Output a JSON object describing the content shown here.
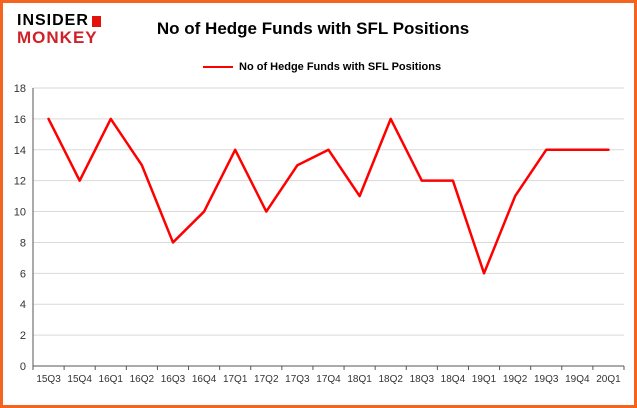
{
  "logo": {
    "line1": "INSIDER",
    "line2": "MONKEY"
  },
  "title": "No of Hedge Funds with SFL Positions",
  "legend": {
    "label": "No of Hedge Funds with SFL Positions"
  },
  "colors": {
    "border": "#f4641e",
    "line": "#fe0000",
    "grid": "#d9d9d9",
    "axis": "#555555",
    "tick_text": "#333333",
    "logo_red": "#cf2127"
  },
  "chart_data": {
    "type": "line",
    "title": "No of Hedge Funds with SFL Positions",
    "categories": [
      "15Q3",
      "15Q4",
      "16Q1",
      "16Q2",
      "16Q3",
      "16Q4",
      "17Q1",
      "17Q2",
      "17Q3",
      "17Q4",
      "18Q1",
      "18Q2",
      "18Q3",
      "18Q4",
      "19Q1",
      "19Q2",
      "19Q3",
      "19Q4",
      "20Q1"
    ],
    "values": [
      16,
      12,
      16,
      13,
      8,
      10,
      14,
      10,
      13,
      14,
      11,
      16,
      12,
      12,
      6,
      11,
      14,
      14,
      14
    ],
    "xlabel": "",
    "ylabel": "",
    "ylim": [
      0,
      18
    ],
    "ytick_step": 2,
    "grid": true,
    "legend_position": "top-left",
    "series_color": "#fe0000"
  }
}
